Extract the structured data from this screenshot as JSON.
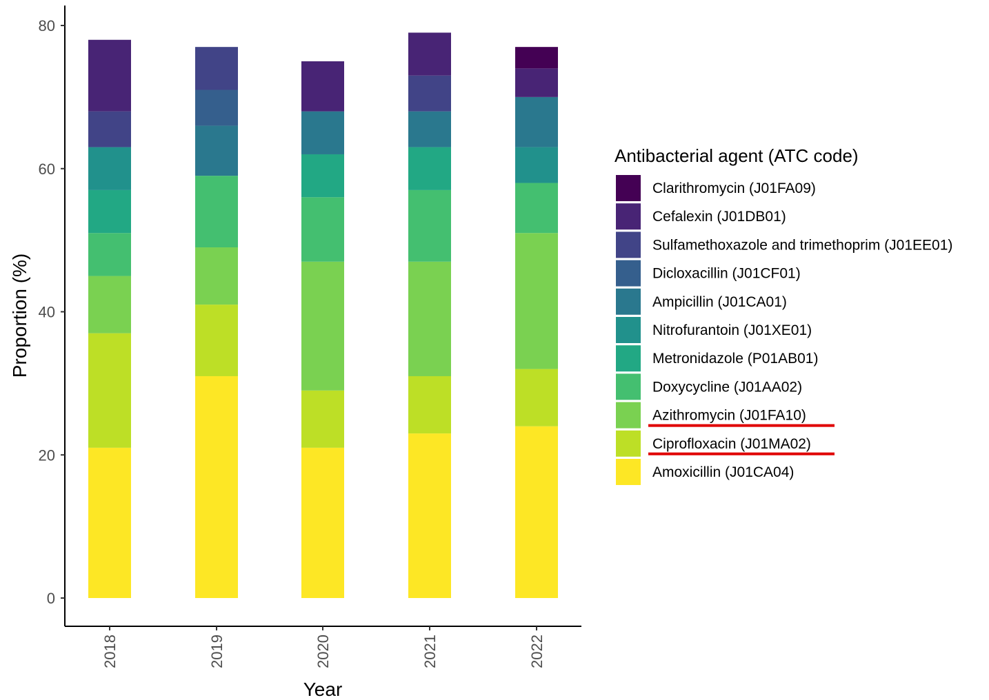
{
  "chart_data": {
    "type": "bar",
    "stacked": true,
    "categories": [
      "2018",
      "2019",
      "2020",
      "2021",
      "2022"
    ],
    "xlabel": "Year",
    "ylabel": "Proportion (%)",
    "ylim": [
      0,
      80
    ],
    "yticks": [
      0,
      20,
      40,
      60,
      80
    ],
    "grid": false,
    "legend": {
      "title": "Antibacterial agent (ATC code)",
      "position": "right",
      "order": "top-of-stack first",
      "underlined": [
        "Azithromycin (J01FA10)",
        "Ciprofloxacin (J01MA02)"
      ],
      "underline_color": "#e00000"
    },
    "series": [
      {
        "name": "Amoxicillin (J01CA04)",
        "color": "#fde725",
        "values": [
          21,
          31,
          21,
          23,
          24
        ]
      },
      {
        "name": "Ciprofloxacin (J01MA02)",
        "color": "#bddf26",
        "values": [
          16,
          10,
          8,
          8,
          8
        ]
      },
      {
        "name": "Azithromycin (J01FA10)",
        "color": "#7ad151",
        "values": [
          8,
          8,
          18,
          16,
          19
        ]
      },
      {
        "name": "Doxycycline (J01AA02)",
        "color": "#44bf70",
        "values": [
          6,
          10,
          9,
          10,
          7
        ]
      },
      {
        "name": "Metronidazole (P01AB01)",
        "color": "#22a884",
        "values": [
          6,
          0,
          6,
          6,
          0
        ]
      },
      {
        "name": "Nitrofurantoin (J01XE01)",
        "color": "#21918c",
        "values": [
          6,
          0,
          0,
          0,
          5
        ]
      },
      {
        "name": "Ampicillin (J01CA01)",
        "color": "#2a788e",
        "values": [
          0,
          7,
          6,
          5,
          7
        ]
      },
      {
        "name": "Dicloxacillin (J01CF01)",
        "color": "#355f8d",
        "values": [
          0,
          5,
          0,
          0,
          0
        ]
      },
      {
        "name": "Sulfamethoxazole and trimethoprim (J01EE01)",
        "color": "#414487",
        "values": [
          5,
          6,
          0,
          5,
          0
        ]
      },
      {
        "name": "Cefalexin (J01DB01)",
        "color": "#482475",
        "values": [
          10,
          0,
          7,
          6,
          4
        ]
      },
      {
        "name": "Clarithromycin (J01FA09)",
        "color": "#440154",
        "values": [
          0,
          0,
          0,
          0,
          3
        ]
      }
    ]
  }
}
